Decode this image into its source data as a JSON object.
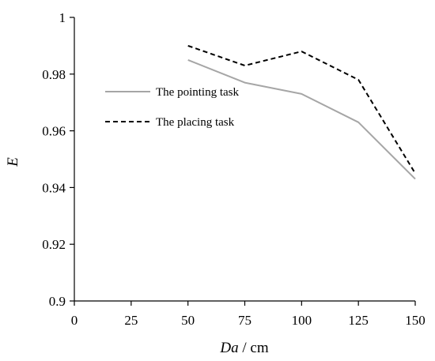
{
  "chart_data": {
    "type": "line",
    "x": [
      50,
      75,
      100,
      125,
      150
    ],
    "series": [
      {
        "name": "The pointing task",
        "values": [
          0.985,
          0.977,
          0.973,
          0.963,
          0.943
        ],
        "color": "#a6a6a6",
        "dash": "solid"
      },
      {
        "name": "The placing task",
        "values": [
          0.99,
          0.983,
          0.988,
          0.978,
          0.945
        ],
        "color": "#000000",
        "dash": "dashed"
      }
    ],
    "xlabel_italic": "Da",
    "xlabel_unit": "/ cm",
    "ylabel": "E",
    "xlim": [
      0,
      150
    ],
    "ylim": [
      0.9,
      1.0
    ],
    "xticks": [
      "0",
      "25",
      "50",
      "75",
      "100",
      "125",
      "150"
    ],
    "yticks": [
      "0.9",
      "0.92",
      "0.94",
      "0.96",
      "0.98",
      "1"
    ],
    "grid": false,
    "legend_position": "upper-left-inside"
  }
}
